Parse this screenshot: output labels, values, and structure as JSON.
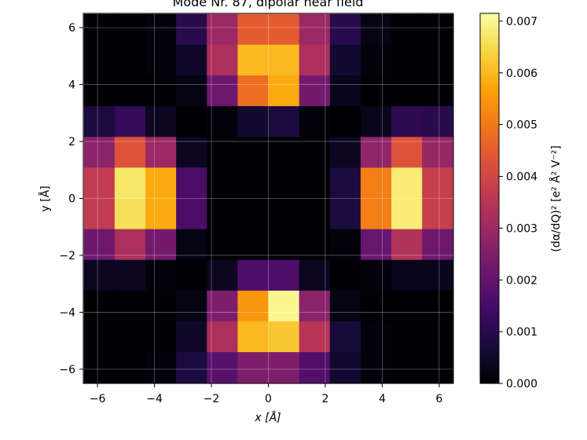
{
  "chart_data": {
    "type": "heatmap",
    "title": "Mode Nr. 87, dipolar near field",
    "xlabel": "x [Å]",
    "ylabel": "y [Å]",
    "colorbar_label": "(dα/dQ)² [e² Å² V⁻²]",
    "xlim": [
      -6.5,
      6.5
    ],
    "ylim": [
      -6.5,
      6.5
    ],
    "x_ticks": [
      "−6",
      "−4",
      "−2",
      "0",
      "2",
      "4",
      "6"
    ],
    "y_ticks": [
      "−6",
      "−4",
      "−2",
      "0",
      "2",
      "4",
      "6"
    ],
    "colorbar_ticks": [
      "0.000",
      "0.001",
      "0.002",
      "0.003",
      "0.004",
      "0.005",
      "0.006",
      "0.007"
    ],
    "colormap": "inferno",
    "vmin": 0.0,
    "vmax": 0.00715,
    "grid": true,
    "cell_size": 1.08,
    "x_centers": [
      -5.94,
      -4.86,
      -3.78,
      -2.7,
      -1.62,
      -0.54,
      0.54,
      1.62,
      2.7,
      3.78,
      4.86,
      5.94
    ],
    "y_centers_top_to_bottom": [
      5.94,
      4.86,
      3.78,
      2.7,
      1.62,
      0.54,
      -0.54,
      -1.62,
      -2.7,
      -3.78,
      -4.86,
      -5.94
    ],
    "values_top_to_bottom": [
      [
        0.0,
        0.0,
        0.0001,
        0.001,
        0.003,
        0.0045,
        0.0045,
        0.003,
        0.001,
        0.0002,
        0.0,
        0.0
      ],
      [
        0.0,
        0.0,
        0.0001,
        0.0005,
        0.0033,
        0.006,
        0.006,
        0.0033,
        0.0006,
        0.0001,
        0.0,
        0.0
      ],
      [
        0.0,
        0.0,
        0.0,
        0.0002,
        0.0022,
        0.0048,
        0.0058,
        0.0023,
        0.0003,
        0.0,
        0.0,
        0.0
      ],
      [
        0.0008,
        0.0012,
        0.0004,
        0.0,
        0.0001,
        0.0006,
        0.0008,
        0.0001,
        0.0,
        0.0003,
        0.0011,
        0.001
      ],
      [
        0.0027,
        0.0043,
        0.003,
        0.0004,
        0.0,
        0.0,
        0.0,
        0.0,
        0.0004,
        0.0028,
        0.0043,
        0.0029
      ],
      [
        0.0037,
        0.0067,
        0.0058,
        0.0016,
        0.0,
        0.0,
        0.0,
        0.0,
        0.0008,
        0.0051,
        0.0068,
        0.0038
      ],
      [
        0.0037,
        0.0066,
        0.0058,
        0.0016,
        0.0,
        0.0,
        0.0,
        0.0,
        0.0008,
        0.0051,
        0.0068,
        0.0038
      ],
      [
        0.0022,
        0.0033,
        0.0023,
        0.0002,
        0.0,
        0.0,
        0.0,
        0.0,
        0.0001,
        0.0021,
        0.0034,
        0.0022
      ],
      [
        0.0004,
        0.0004,
        0.0001,
        0.0,
        0.0004,
        0.0016,
        0.0016,
        0.0004,
        0.0,
        0.0001,
        0.0003,
        0.0003
      ],
      [
        0.0,
        0.0,
        0.0,
        0.0002,
        0.0025,
        0.0055,
        0.007,
        0.0027,
        0.0002,
        0.0,
        0.0,
        0.0
      ],
      [
        0.0,
        0.0,
        0.0,
        0.0005,
        0.0033,
        0.006,
        0.0062,
        0.0035,
        0.0007,
        0.0001,
        0.0,
        0.0
      ],
      [
        0.0,
        0.0,
        0.0001,
        0.0008,
        0.0018,
        0.0025,
        0.0025,
        0.0017,
        0.0006,
        0.0001,
        0.0,
        0.0
      ]
    ]
  }
}
